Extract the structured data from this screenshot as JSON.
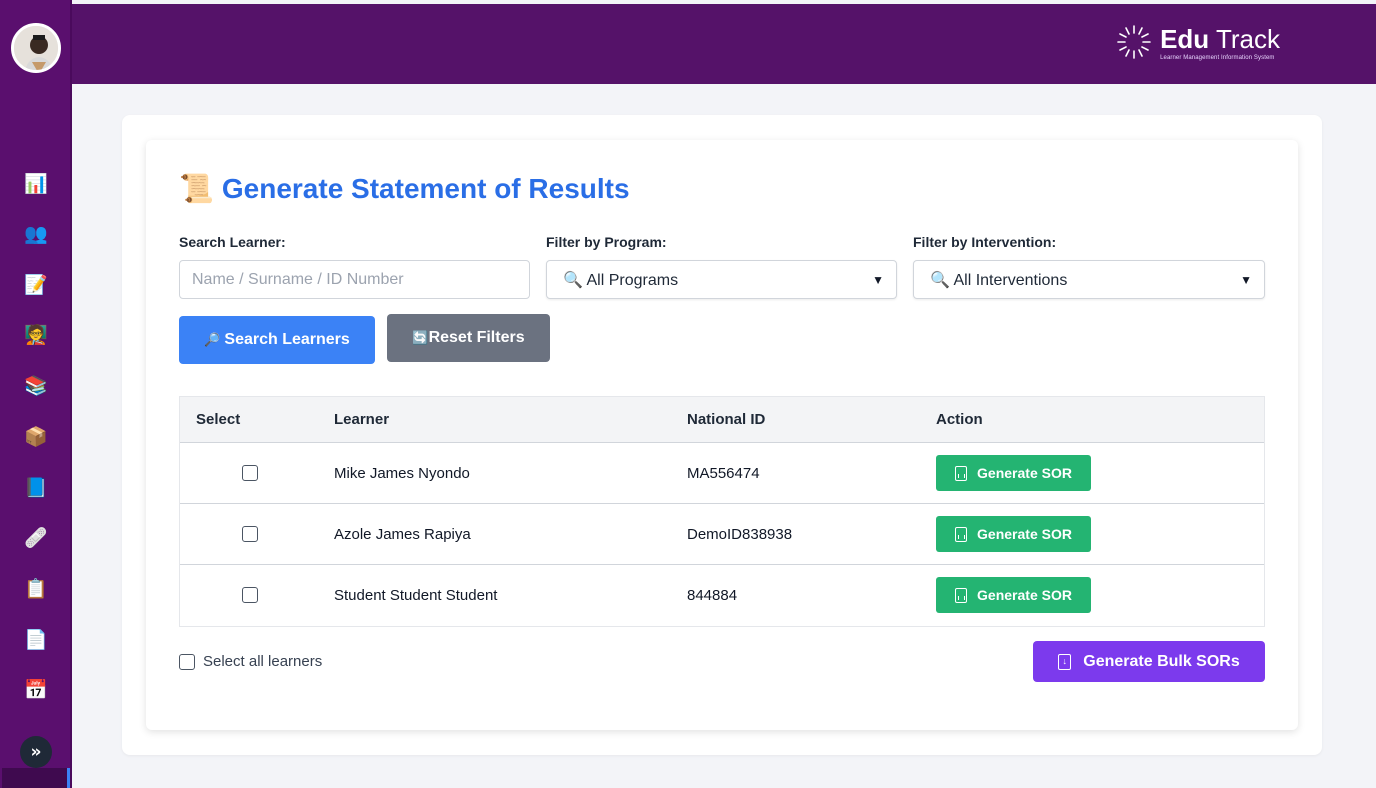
{
  "brand": {
    "name_bold": "Edu",
    "name_light": "Track",
    "tagline": "Learner Management Information System"
  },
  "sidebar": {
    "items": [
      {
        "id": "dashboard",
        "glyph": "📊"
      },
      {
        "id": "learners",
        "glyph": "👥"
      },
      {
        "id": "assessments",
        "glyph": "📝"
      },
      {
        "id": "facilitators",
        "glyph": "🧑‍🏫"
      },
      {
        "id": "programs",
        "glyph": "📚"
      },
      {
        "id": "packages",
        "glyph": "📦"
      },
      {
        "id": "books",
        "glyph": "📘"
      },
      {
        "id": "interventions",
        "glyph": "🩹"
      },
      {
        "id": "clipboard",
        "glyph": "📋"
      },
      {
        "id": "documents",
        "glyph": "📄"
      },
      {
        "id": "calendar",
        "glyph": "📅"
      }
    ],
    "expand_glyph": "»"
  },
  "page": {
    "title_icon": "📜",
    "title": "Generate Statement of Results"
  },
  "filters": {
    "search_label": "Search Learner:",
    "search_placeholder": "Name / Surname / ID Number",
    "search_value": "",
    "program_label": "Filter by Program:",
    "program_selected": "🔍 All Programs",
    "intervention_label": "Filter by Intervention:",
    "intervention_selected": "🔍 All Interventions",
    "search_button": "Search Learners",
    "search_button_icon": "🔎",
    "reset_button": "Reset Filters",
    "reset_button_icon": "🔄"
  },
  "table": {
    "headers": {
      "select": "Select",
      "learner": "Learner",
      "national_id": "National ID",
      "action": "Action"
    },
    "rows": [
      {
        "learner": "Mike James Nyondo",
        "national_id": "MA556474",
        "action": "Generate SOR",
        "checked": false
      },
      {
        "learner": "Azole James Rapiya",
        "national_id": "DemoID838938",
        "action": "Generate SOR",
        "checked": false
      },
      {
        "learner": "Student Student Student",
        "national_id": "844884",
        "action": "Generate SOR",
        "checked": false
      }
    ]
  },
  "footer": {
    "select_all_label": "Select all learners",
    "bulk_button": "Generate Bulk SORs"
  },
  "colors": {
    "sidebar": "#5a0f6e",
    "topbar": "#551269",
    "title": "#2a6ee6",
    "primary": "#3b82f6",
    "secondary": "#6b7280",
    "success": "#24b472",
    "bulk": "#7c3aed"
  }
}
